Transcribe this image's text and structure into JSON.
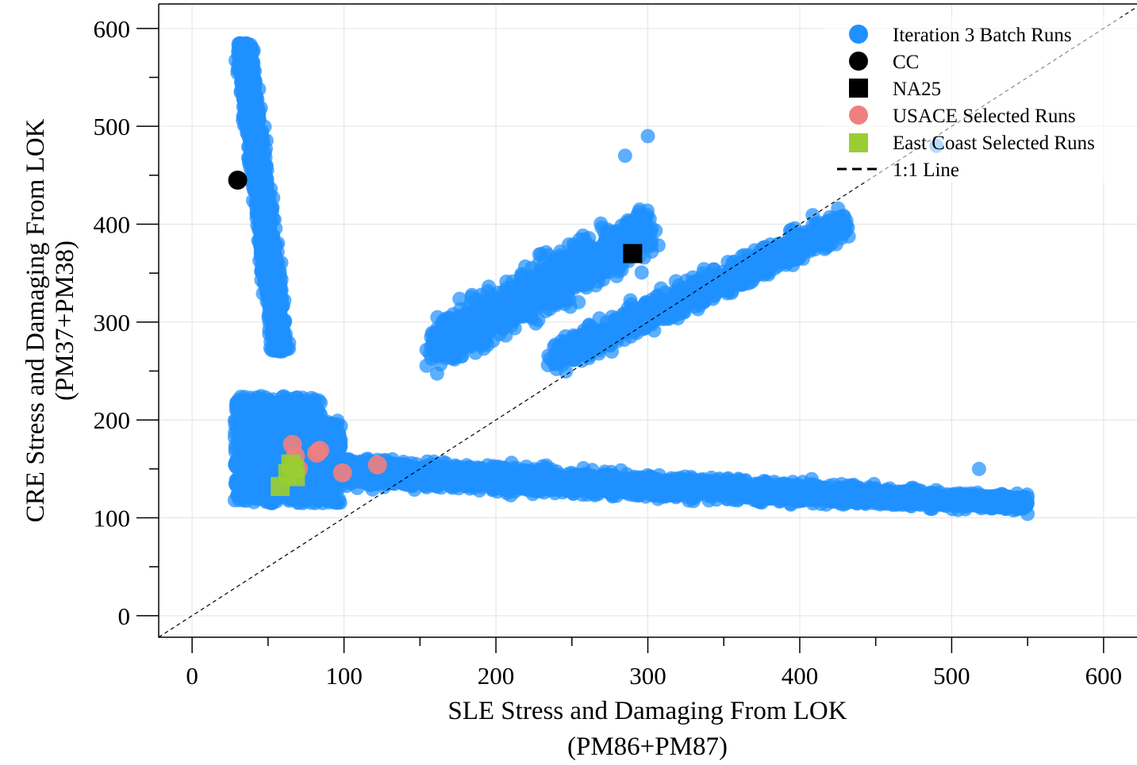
{
  "chart_data": {
    "type": "scatter",
    "xlabel": "SLE Stress and Damaging From LOK",
    "xlabel_sub": "(PM86+PM87)",
    "ylabel": "CRE Stress and Damaging From LOK",
    "ylabel_sub": "(PM37+PM38)",
    "xlim": [
      -22,
      622
    ],
    "ylim": [
      -22,
      625
    ],
    "x_ticks": [
      0,
      100,
      200,
      300,
      400,
      500,
      600
    ],
    "y_ticks": [
      0,
      100,
      200,
      300,
      400,
      500,
      600
    ],
    "grid": true,
    "legend_position": "top-right",
    "colors": {
      "batch": "#1e90ff",
      "cc": "#000000",
      "na25": "#000000",
      "usace": "#f08080",
      "east_coast": "#9acd32",
      "one_to_one": "#000000"
    },
    "legend": [
      {
        "label": "Iteration 3 Batch Runs",
        "marker": "circle",
        "color": "#1e90ff"
      },
      {
        "label": "CC",
        "marker": "circle",
        "color": "#000000"
      },
      {
        "label": "NA25",
        "marker": "square",
        "color": "#000000"
      },
      {
        "label": "USACE Selected Runs",
        "marker": "circle",
        "color": "#f08080"
      },
      {
        "label": "East Coast Selected Runs",
        "marker": "square",
        "color": "#9acd32"
      },
      {
        "label": "1:1 Line",
        "marker": "dashed-line",
        "color": "#000000"
      }
    ],
    "batch_clusters": [
      {
        "name": "vertical-arm",
        "x_min": 25,
        "x_max": 75,
        "y_min": 270,
        "y_max": 585,
        "n": 1800
      },
      {
        "name": "corner-blob",
        "x_min": 28,
        "x_max": 98,
        "y_min": 115,
        "y_max": 225,
        "n": 900
      },
      {
        "name": "horizontal-arm",
        "x_min": 60,
        "x_max": 550,
        "y_min": 88,
        "y_max": 195,
        "n": 3600
      },
      {
        "name": "upper-wing",
        "x_min": 150,
        "x_max": 320,
        "y_min": 215,
        "y_max": 490,
        "n": 1100
      },
      {
        "name": "diagonal-wing",
        "x_min": 230,
        "x_max": 440,
        "y_min": 245,
        "y_max": 425,
        "n": 1000
      }
    ],
    "cc": [
      {
        "x": 30,
        "y": 445
      }
    ],
    "na25": [
      {
        "x": 290,
        "y": 370
      }
    ],
    "usace": [
      {
        "x": 66,
        "y": 175
      },
      {
        "x": 68,
        "y": 163
      },
      {
        "x": 70,
        "y": 150
      },
      {
        "x": 82,
        "y": 166
      },
      {
        "x": 84,
        "y": 169
      },
      {
        "x": 99,
        "y": 146
      },
      {
        "x": 122,
        "y": 154
      }
    ],
    "east_coast": [
      {
        "x": 58,
        "y": 132
      },
      {
        "x": 63,
        "y": 145
      },
      {
        "x": 65,
        "y": 155
      },
      {
        "x": 67,
        "y": 150
      },
      {
        "x": 68,
        "y": 142
      }
    ],
    "one_to_one": [
      [
        -22,
        -22
      ],
      [
        625,
        625
      ]
    ]
  }
}
